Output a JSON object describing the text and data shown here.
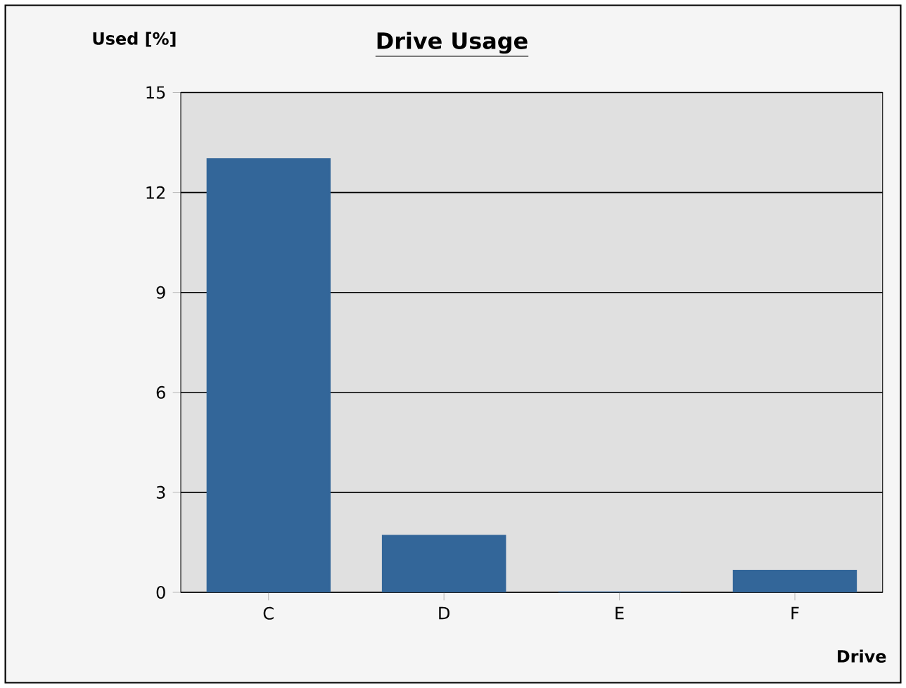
{
  "chart_data": {
    "type": "bar",
    "title": "Drive Usage",
    "xlabel": "Drive",
    "ylabel": "Used [%]",
    "categories": [
      "C",
      "D",
      "E",
      "F"
    ],
    "values": [
      13,
      1.7,
      0,
      0.65
    ],
    "color": "#336699",
    "ylim": [
      0,
      15
    ],
    "yticks": [
      0,
      3,
      6,
      9,
      12,
      15
    ],
    "grid": "y"
  }
}
